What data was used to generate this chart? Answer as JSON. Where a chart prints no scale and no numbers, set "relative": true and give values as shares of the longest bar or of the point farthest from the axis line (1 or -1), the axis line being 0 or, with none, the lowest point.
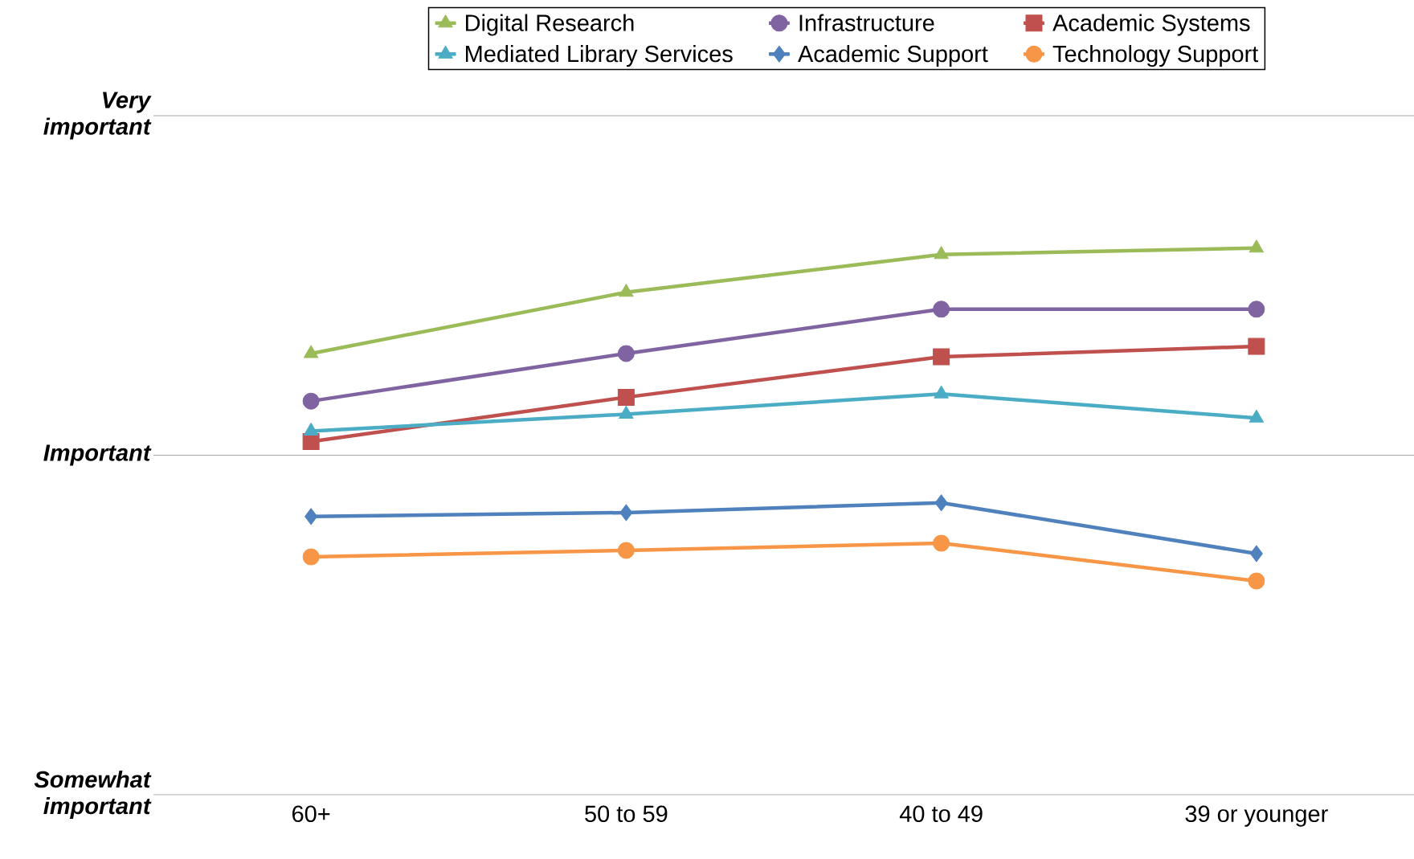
{
  "chart_data": {
    "type": "line",
    "relative": true,
    "categories": [
      "60+",
      "50 to 59",
      "40 to 49",
      "39 or younger"
    ],
    "series": [
      {
        "name": "Digital Research",
        "color": "#9bbb59",
        "marker": "triangle",
        "values": [
          0.807,
          0.919,
          0.988,
          1.0
        ]
      },
      {
        "name": "Infrastructure",
        "color": "#8064a2",
        "marker": "circle",
        "values": [
          0.72,
          0.807,
          0.888,
          0.888
        ]
      },
      {
        "name": "Academic Systems",
        "color": "#c0504d",
        "marker": "square",
        "values": [
          0.646,
          0.727,
          0.801,
          0.82
        ]
      },
      {
        "name": "Mediated Library Services",
        "color": "#4bacc6",
        "marker": "triangle",
        "values": [
          0.665,
          0.696,
          0.733,
          0.689
        ]
      },
      {
        "name": "Academic Support",
        "color": "#4f81bd",
        "marker": "diamond",
        "values": [
          0.509,
          0.516,
          0.534,
          0.441
        ]
      },
      {
        "name": "Technology Support",
        "color": "#f79646",
        "marker": "circle",
        "values": [
          0.435,
          0.447,
          0.46,
          0.391
        ]
      }
    ],
    "annotations": [
      "Somewhat important"
    ],
    "ref_lines": [
      {
        "axis": "y",
        "value": 0.621,
        "label": "Important"
      },
      {
        "axis": "y",
        "value": 1.242,
        "label": "Very important"
      }
    ],
    "legend": "top",
    "line_style": "solid"
  }
}
